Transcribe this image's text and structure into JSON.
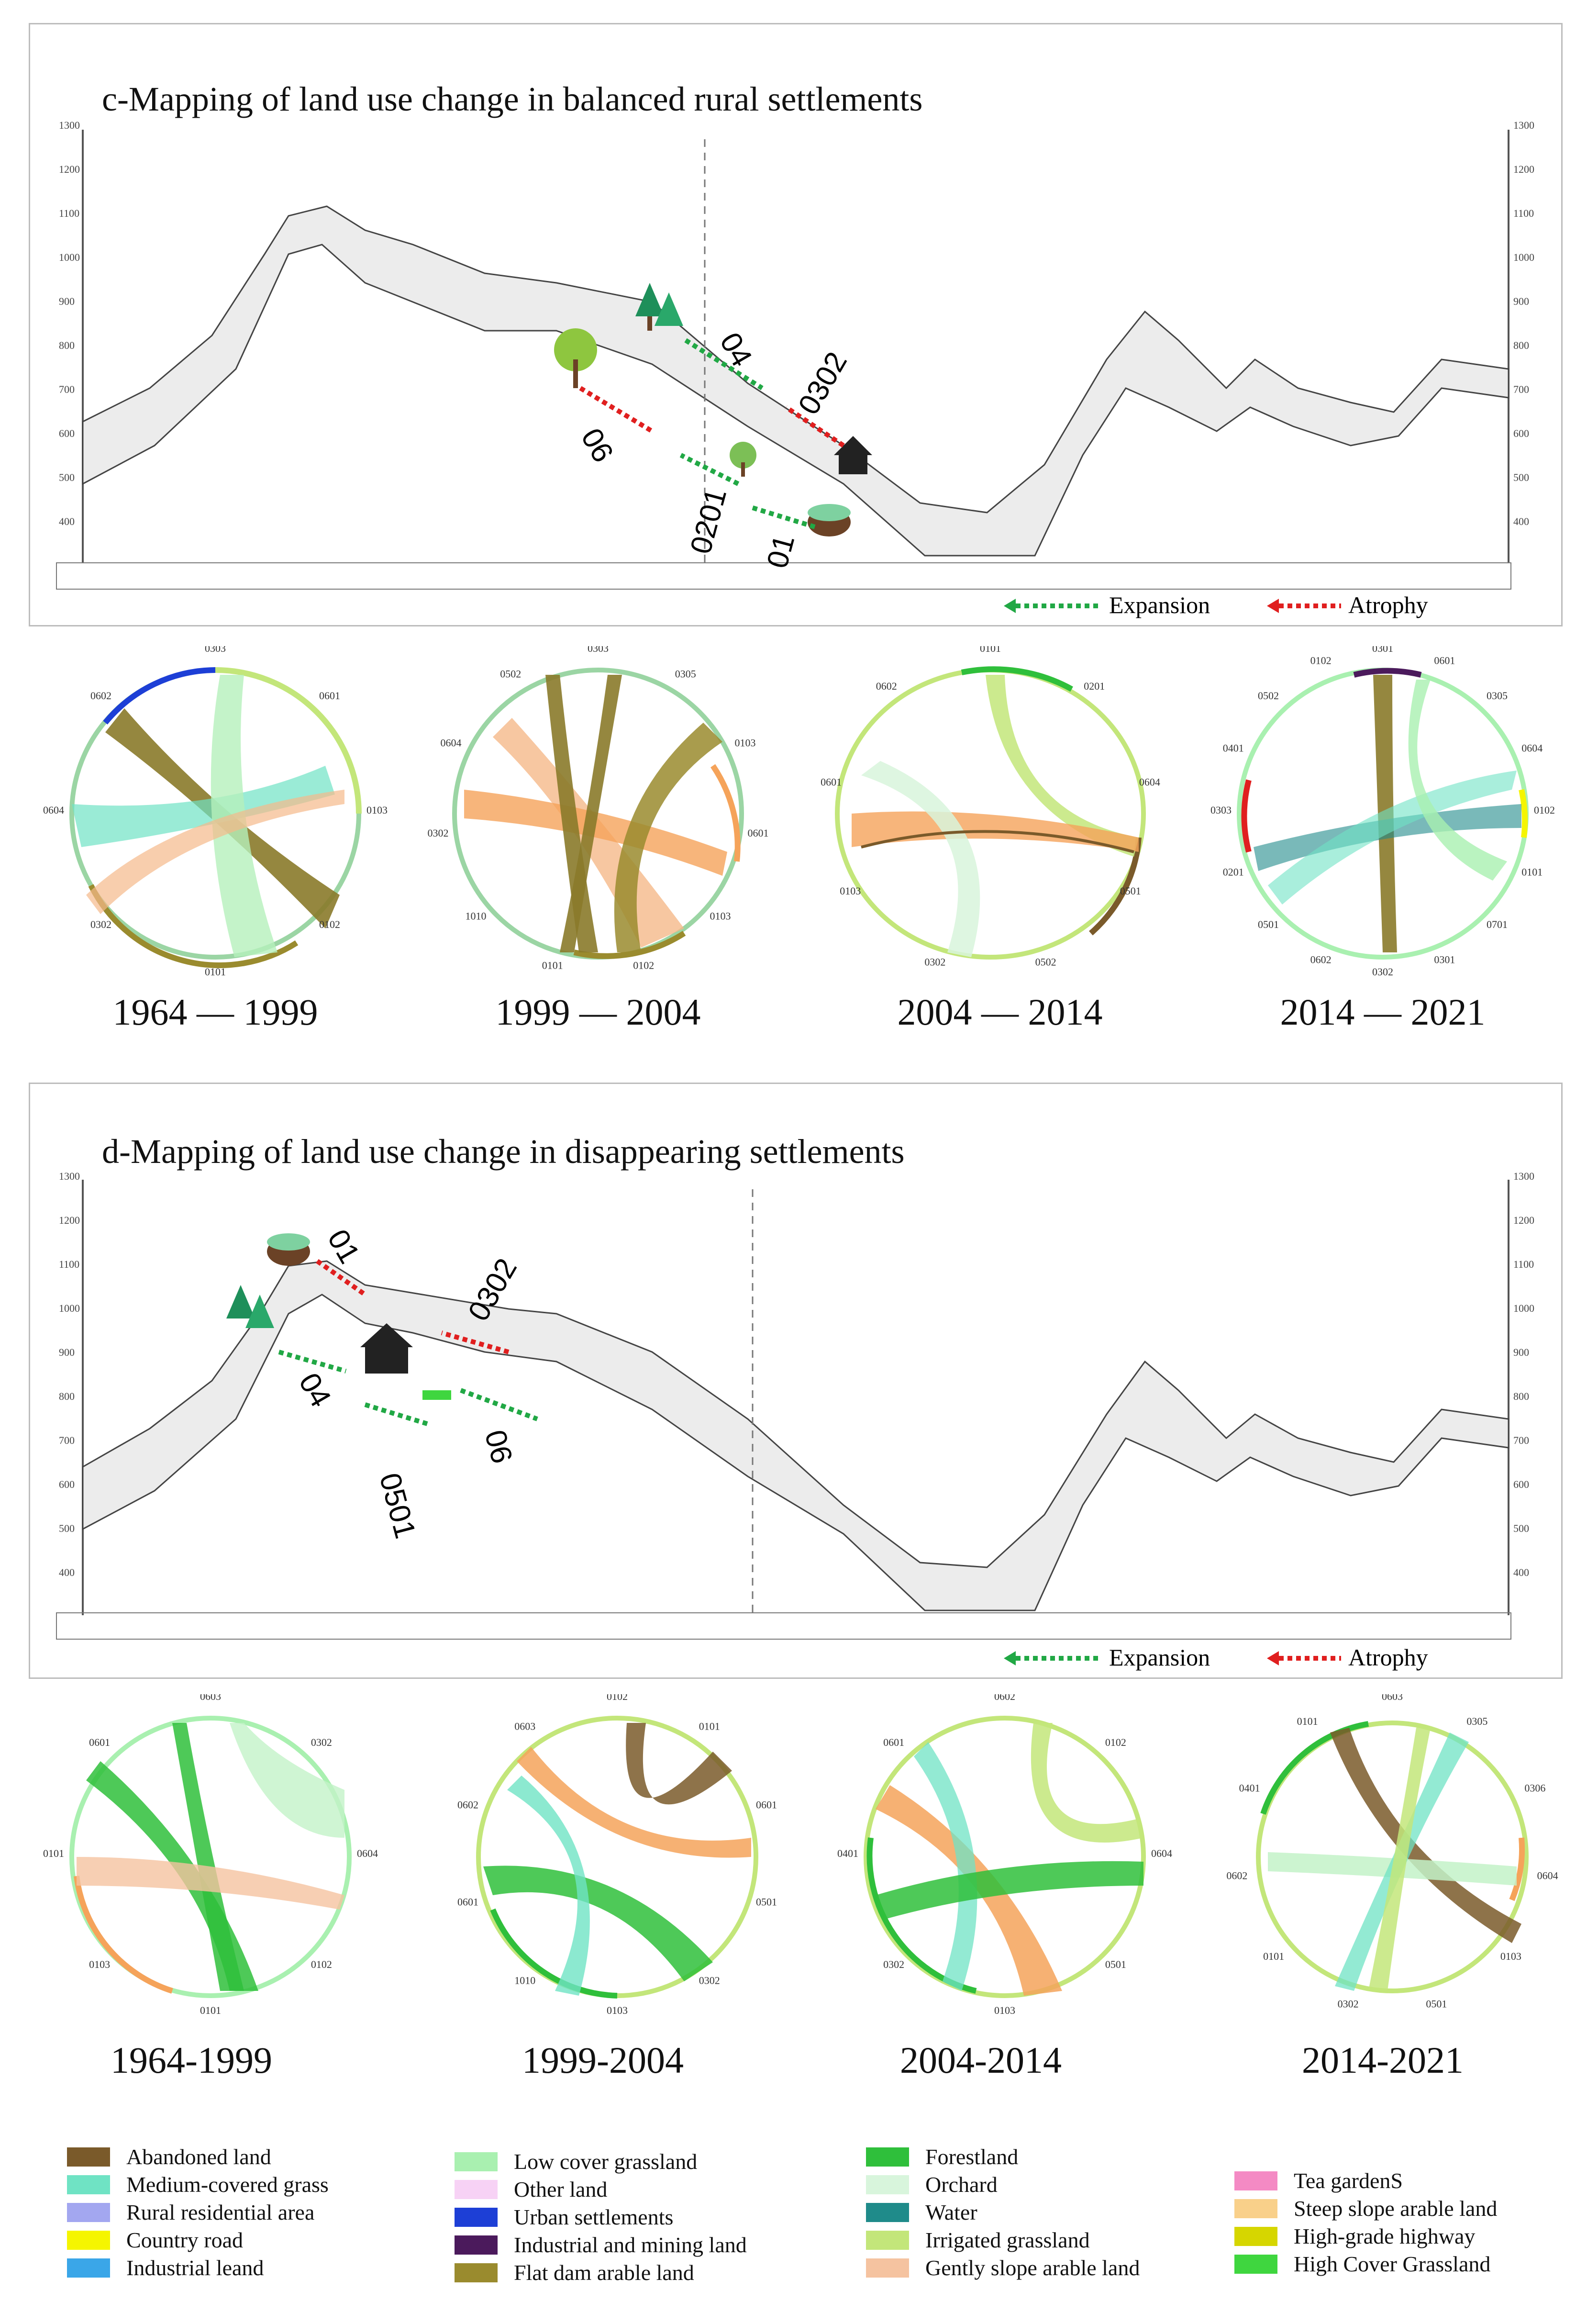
{
  "panel_c": {
    "title": "c-Mapping of land use change in balanced rural settlements",
    "legend": {
      "expansion": "Expansion",
      "atrophy": "Atrophy"
    },
    "flow_labels": [
      "04",
      "0302",
      "06",
      "0201",
      "01"
    ],
    "periods": [
      "1964 — 1999",
      "1999 — 2004",
      "2004 — 2014",
      "2014 — 2021"
    ]
  },
  "panel_d": {
    "title": "d-Mapping of land use change in disappearing settlements",
    "legend": {
      "expansion": "Expansion",
      "atrophy": "Atrophy"
    },
    "flow_labels": [
      "01",
      "0302",
      "04",
      "0501",
      "06"
    ],
    "periods": [
      "1964-1999",
      "1999-2004",
      "2004-2014",
      "2014-2021"
    ]
  },
  "axis_ticks": [
    "1300",
    "1200",
    "1100",
    "1000",
    "900",
    "800",
    "700",
    "600",
    "500",
    "400"
  ],
  "land_use_legend": [
    {
      "label": "Abandoned land",
      "color": "#7a5a2a"
    },
    {
      "label": "Medium-covered grass",
      "color": "#6fe3c4"
    },
    {
      "label": "Rural residential area",
      "color": "#a3a7f0"
    },
    {
      "label": "Country road",
      "color": "#f5f500"
    },
    {
      "label": "Industrial leand",
      "color": "#3aa6e8"
    },
    {
      "label": "Low cover grassland",
      "color": "#a9f0b0"
    },
    {
      "label": "Other land",
      "color": "#f7d2f5"
    },
    {
      "label": "Urban settlements",
      "color": "#1d3fd6"
    },
    {
      "label": "Industrial and mining land",
      "color": "#4b1a5c"
    },
    {
      "label": "Flat dam arable land",
      "color": "#9a8b2e"
    },
    {
      "label": "Forestland",
      "color": "#2fbf3b"
    },
    {
      "label": "Orchard",
      "color": "#d8f5dc"
    },
    {
      "label": "Water",
      "color": "#1f8b8a"
    },
    {
      "label": "Irrigated grassland",
      "color": "#c3e67a"
    },
    {
      "label": "Gently slope arable land",
      "color": "#f5c3a0"
    },
    {
      "label": "Tea gardenS",
      "color": "#f48ac4"
    },
    {
      "label": "Steep slope arable land",
      "color": "#f9d08a"
    },
    {
      "label": "High-grade highway",
      "color": "#d6d600"
    },
    {
      "label": "High Cover Grassland",
      "color": "#3fd63f"
    }
  ],
  "chord_codes_c": [
    [
      "0303",
      "0601",
      "0103",
      "0102",
      "0101",
      "0302",
      "0604",
      "0602"
    ],
    [
      "0303",
      "0305",
      "0103",
      "0601",
      "0103",
      "0102",
      "0101",
      "1010",
      "0302",
      "0604",
      "0502"
    ],
    [
      "0101",
      "0201",
      "0604",
      "0501",
      "0502",
      "0302",
      "0103",
      "0601",
      "0602"
    ],
    [
      "0301",
      "0601",
      "0305",
      "0604",
      "0102",
      "0101",
      "0701",
      "0301",
      "0302",
      "0602",
      "0501",
      "0201",
      "0303",
      "0401",
      "0502",
      "0102"
    ]
  ],
  "chord_codes_d": [
    [
      "0603",
      "0302",
      "0604",
      "0102",
      "0101",
      "0103",
      "0101",
      "0601"
    ],
    [
      "0102",
      "0101",
      "0601",
      "0501",
      "0302",
      "0103",
      "1010",
      "0601",
      "0602",
      "0603"
    ],
    [
      "0602",
      "0102",
      "0604",
      "0501",
      "0103",
      "0302",
      "0401",
      "0601"
    ],
    [
      "0603",
      "0305",
      "0306",
      "0604",
      "0103",
      "0501",
      "0302",
      "0101",
      "0602",
      "0401",
      "0101"
    ]
  ],
  "colors": {
    "expansion": "#21a845",
    "atrophy": "#e01f1f",
    "profile_fill": "#ededed",
    "profile_line": "#444444"
  }
}
